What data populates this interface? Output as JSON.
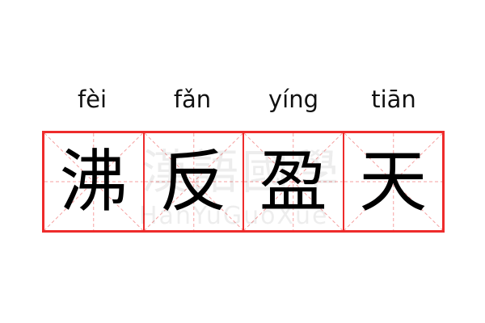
{
  "entries": [
    {
      "pinyin": "fèi",
      "char": "沸"
    },
    {
      "pinyin": "fǎn",
      "char": "反"
    },
    {
      "pinyin": "yíng",
      "char": "盈"
    },
    {
      "pinyin": "tiān",
      "char": "天"
    }
  ],
  "watermark": {
    "chars": "漢語國學",
    "latin": "HanYuGuoXue"
  },
  "colors": {
    "grid": "#ee2b2b",
    "guide": "#f5a0a0"
  }
}
